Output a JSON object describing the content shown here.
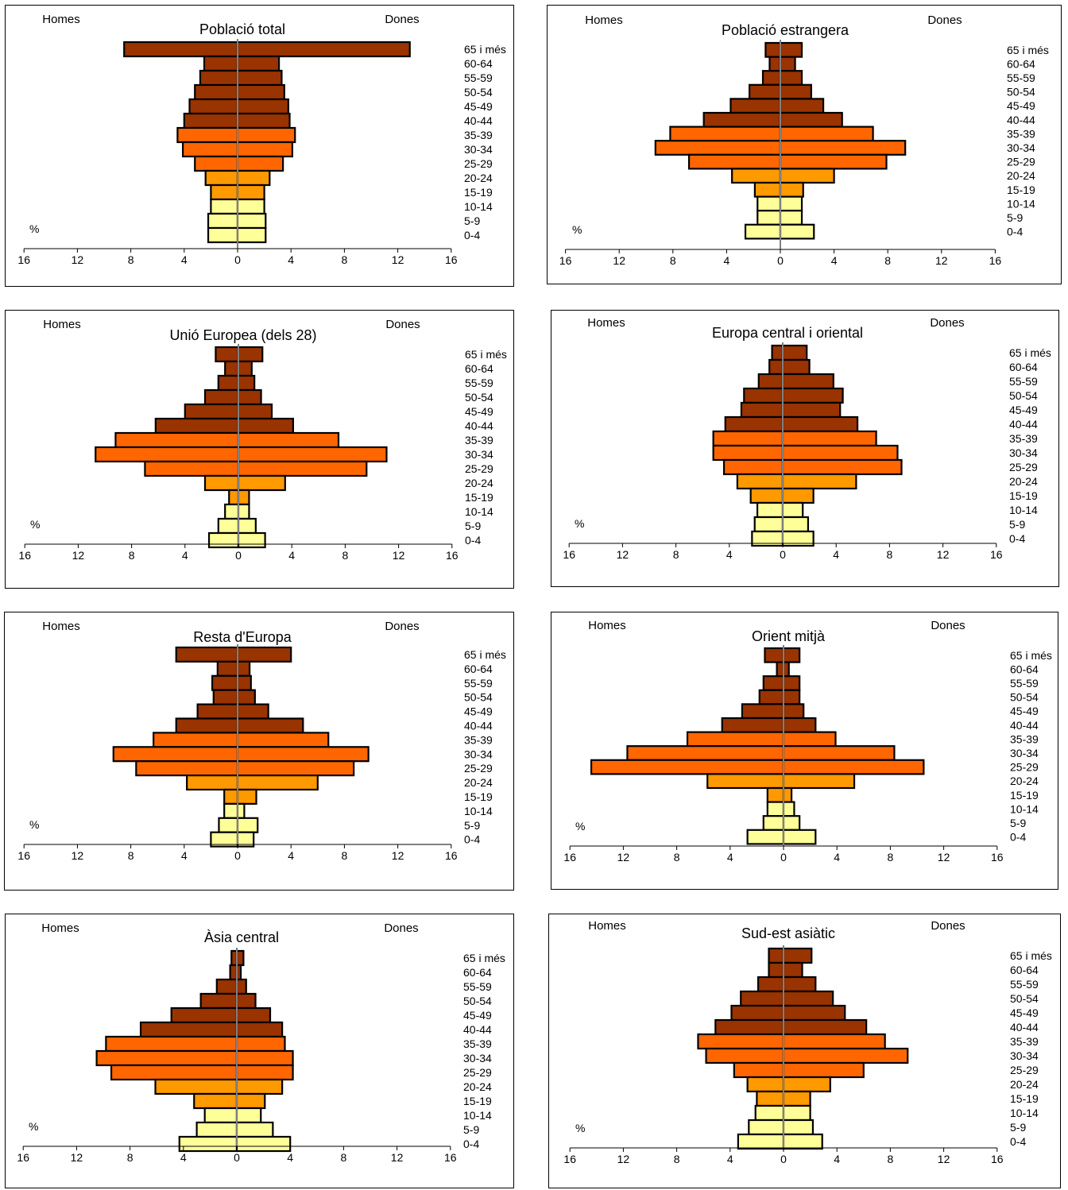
{
  "chart_data": [
    {
      "type": "bar",
      "subtype": "population-pyramid",
      "title": "Població total",
      "left_label": "Homes",
      "right_label": "Dones",
      "unit_label": "%",
      "x_ticks": [
        "16",
        "12",
        "8",
        "4",
        "0",
        "4",
        "8",
        "12",
        "16"
      ],
      "xlim": [
        -16,
        16
      ],
      "categories": [
        "65 i més",
        "60-64",
        "55-59",
        "50-54",
        "45-49",
        "40-44",
        "35-39",
        "30-34",
        "25-29",
        "20-24",
        "15-19",
        "10-14",
        "5-9",
        "0-4"
      ],
      "series": [
        {
          "name": "Homes",
          "values": [
            8.5,
            2.5,
            2.8,
            3.2,
            3.6,
            4.0,
            4.5,
            4.1,
            3.2,
            2.4,
            2.0,
            2.0,
            2.2,
            2.2
          ]
        },
        {
          "name": "Dones",
          "values": [
            12.9,
            3.1,
            3.3,
            3.5,
            3.8,
            3.9,
            4.3,
            4.1,
            3.4,
            2.4,
            2.0,
            2.0,
            2.1,
            2.1
          ]
        }
      ]
    },
    {
      "type": "bar",
      "subtype": "population-pyramid",
      "title": "Població estrangera",
      "left_label": "Homes",
      "right_label": "Dones",
      "unit_label": "%",
      "x_ticks": [
        "16",
        "12",
        "8",
        "4",
        "0",
        "4",
        "8",
        "12",
        "16"
      ],
      "xlim": [
        -16,
        16
      ],
      "categories": [
        "65 i més",
        "60-64",
        "55-59",
        "50-54",
        "45-49",
        "40-44",
        "35-39",
        "30-34",
        "25-29",
        "20-24",
        "15-19",
        "10-14",
        "5-9",
        "0-4"
      ],
      "series": [
        {
          "name": "Homes",
          "values": [
            1.1,
            0.8,
            1.3,
            2.3,
            3.7,
            5.7,
            8.2,
            9.3,
            6.8,
            3.6,
            1.9,
            1.7,
            1.7,
            2.6
          ]
        },
        {
          "name": "Dones",
          "values": [
            1.6,
            1.1,
            1.6,
            2.3,
            3.2,
            4.6,
            6.9,
            9.3,
            7.9,
            4.0,
            1.7,
            1.6,
            1.6,
            2.5
          ]
        }
      ]
    },
    {
      "type": "bar",
      "subtype": "population-pyramid",
      "title": "Unió Europea (dels 28)",
      "left_label": "Homes",
      "right_label": "Dones",
      "unit_label": "%",
      "x_ticks": [
        "16",
        "12",
        "8",
        "4",
        "0",
        "4",
        "8",
        "12",
        "16"
      ],
      "xlim": [
        -16,
        16
      ],
      "categories": [
        "65 i més",
        "60-64",
        "55-59",
        "50-54",
        "45-49",
        "40-44",
        "35-39",
        "30-34",
        "25-29",
        "20-24",
        "15-19",
        "10-14",
        "5-9",
        "0-4"
      ],
      "series": [
        {
          "name": "Homes",
          "values": [
            1.7,
            1.0,
            1.5,
            2.5,
            4.0,
            6.2,
            9.2,
            10.7,
            7.0,
            2.5,
            0.7,
            1.0,
            1.5,
            2.2
          ]
        },
        {
          "name": "Dones",
          "values": [
            1.8,
            1.0,
            1.2,
            1.7,
            2.5,
            4.1,
            7.5,
            11.1,
            9.6,
            3.5,
            0.8,
            0.8,
            1.3,
            2.0
          ]
        }
      ]
    },
    {
      "type": "bar",
      "subtype": "population-pyramid",
      "title": "Europa central i oriental",
      "left_label": "Homes",
      "right_label": "Dones",
      "unit_label": "%",
      "x_ticks": [
        "16",
        "12",
        "8",
        "4",
        "0",
        "4",
        "8",
        "12",
        "16"
      ],
      "xlim": [
        -16,
        16
      ],
      "categories": [
        "65 i més",
        "60-64",
        "55-59",
        "50-54",
        "45-49",
        "40-44",
        "35-39",
        "30-34",
        "25-29",
        "20-24",
        "15-19",
        "10-14",
        "5-9",
        "0-4"
      ],
      "series": [
        {
          "name": "Homes",
          "values": [
            0.8,
            1.0,
            1.8,
            2.9,
            3.1,
            4.3,
            5.2,
            5.2,
            4.4,
            3.4,
            2.4,
            1.9,
            2.1,
            2.3
          ]
        },
        {
          "name": "Dones",
          "values": [
            1.8,
            2.0,
            3.8,
            4.5,
            4.3,
            5.6,
            7.0,
            8.6,
            8.9,
            5.5,
            2.3,
            1.5,
            1.9,
            2.3
          ]
        }
      ]
    },
    {
      "type": "bar",
      "subtype": "population-pyramid",
      "title": "Resta d'Europa",
      "left_label": "Homes",
      "right_label": "Dones",
      "unit_label": "%",
      "x_ticks": [
        "16",
        "12",
        "8",
        "4",
        "0",
        "4",
        "8",
        "12",
        "16"
      ],
      "xlim": [
        -16,
        16
      ],
      "categories": [
        "65 i més",
        "60-64",
        "55-59",
        "50-54",
        "45-49",
        "40-44",
        "35-39",
        "30-34",
        "25-29",
        "20-24",
        "15-19",
        "10-14",
        "5-9",
        "0-4"
      ],
      "series": [
        {
          "name": "Homes",
          "values": [
            4.6,
            1.5,
            1.9,
            1.8,
            3.0,
            4.6,
            6.3,
            9.3,
            7.6,
            3.8,
            1.0,
            1.0,
            1.4,
            2.0
          ]
        },
        {
          "name": "Dones",
          "values": [
            4.0,
            0.9,
            1.0,
            1.3,
            2.3,
            4.9,
            6.8,
            9.8,
            8.7,
            6.0,
            1.4,
            0.5,
            1.5,
            1.2
          ]
        }
      ]
    },
    {
      "type": "bar",
      "subtype": "population-pyramid",
      "title": "Orient mitjà",
      "left_label": "Homes",
      "right_label": "Dones",
      "unit_label": "%",
      "x_ticks": [
        "16",
        "12",
        "8",
        "4",
        "0",
        "4",
        "8",
        "12",
        "16"
      ],
      "xlim": [
        -16,
        16
      ],
      "categories": [
        "65 i més",
        "60-64",
        "55-59",
        "50-54",
        "45-49",
        "40-44",
        "35-39",
        "30-34",
        "25-29",
        "20-24",
        "15-19",
        "10-14",
        "5-9",
        "0-4"
      ],
      "series": [
        {
          "name": "Homes",
          "values": [
            1.4,
            0.5,
            1.5,
            1.8,
            3.1,
            4.6,
            7.2,
            11.7,
            14.4,
            5.7,
            1.2,
            1.2,
            1.5,
            2.7
          ]
        },
        {
          "name": "Dones",
          "values": [
            1.2,
            0.4,
            1.2,
            1.2,
            1.5,
            2.4,
            3.9,
            8.3,
            10.5,
            5.3,
            0.6,
            0.8,
            1.2,
            2.4
          ]
        }
      ]
    },
    {
      "type": "bar",
      "subtype": "population-pyramid",
      "title": "Àsia central",
      "left_label": "Homes",
      "right_label": "Dones",
      "unit_label": "%",
      "x_ticks": [
        "16",
        "12",
        "8",
        "4",
        "0",
        "4",
        "8",
        "12",
        "16"
      ],
      "xlim": [
        -16,
        16
      ],
      "categories": [
        "65 i més",
        "60-64",
        "55-59",
        "50-54",
        "45-49",
        "40-44",
        "35-39",
        "30-34",
        "25-29",
        "20-24",
        "15-19",
        "10-14",
        "5-9",
        "0-4"
      ],
      "series": [
        {
          "name": "Homes",
          "values": [
            0.4,
            0.5,
            1.5,
            2.7,
            4.9,
            7.2,
            9.8,
            10.5,
            9.4,
            6.1,
            3.2,
            2.4,
            3.0,
            4.3
          ]
        },
        {
          "name": "Dones",
          "values": [
            0.5,
            0.3,
            0.7,
            1.4,
            2.5,
            3.4,
            3.6,
            4.2,
            4.2,
            3.4,
            2.1,
            1.8,
            2.7,
            4.0
          ]
        }
      ]
    },
    {
      "type": "bar",
      "subtype": "population-pyramid",
      "title": "Sud-est asiàtic",
      "left_label": "Homes",
      "right_label": "Dones",
      "unit_label": "%",
      "x_ticks": [
        "16",
        "12",
        "8",
        "4",
        "0",
        "4",
        "8",
        "12",
        "16"
      ],
      "xlim": [
        -16,
        16
      ],
      "categories": [
        "65 i més",
        "60-64",
        "55-59",
        "50-54",
        "45-49",
        "40-44",
        "35-39",
        "30-34",
        "25-29",
        "20-24",
        "15-19",
        "10-14",
        "5-9",
        "0-4"
      ],
      "series": [
        {
          "name": "Homes",
          "values": [
            1.1,
            1.1,
            1.9,
            3.2,
            3.9,
            5.1,
            6.4,
            5.8,
            3.7,
            2.7,
            2.0,
            2.1,
            2.6,
            3.4
          ]
        },
        {
          "name": "Dones",
          "values": [
            2.1,
            1.4,
            2.4,
            3.7,
            4.6,
            6.2,
            7.6,
            9.3,
            6.0,
            3.5,
            2.0,
            2.0,
            2.2,
            2.9
          ]
        }
      ]
    }
  ],
  "colors": {
    "age_65_plus_to_40_44": "#993300",
    "age_35_39_to_25_29": "#ff6600",
    "age_20_24_to_15_19": "#ff9900",
    "age_10_14_to_0_4": "#ffff99",
    "center_line": "#808080"
  }
}
